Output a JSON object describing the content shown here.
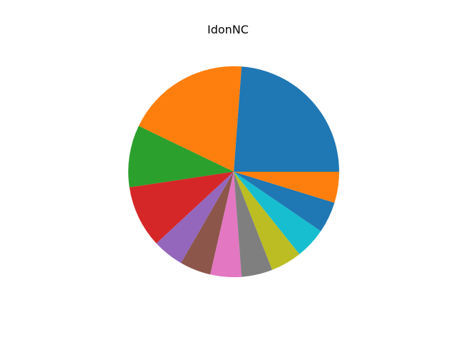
{
  "chart_data": {
    "type": "pie",
    "title": "IdonNC",
    "start_angle_deg": 0,
    "direction": "counterclockwise",
    "slices": [
      {
        "value": 25,
        "color": "#1f77b4"
      },
      {
        "value": 20,
        "color": "#ff7f0e"
      },
      {
        "value": 10,
        "color": "#2ca02c"
      },
      {
        "value": 10,
        "color": "#d62728"
      },
      {
        "value": 5,
        "color": "#9467bd"
      },
      {
        "value": 5,
        "color": "#8c564b"
      },
      {
        "value": 5,
        "color": "#e377c2"
      },
      {
        "value": 5,
        "color": "#7f7f7f"
      },
      {
        "value": 5,
        "color": "#bcbd22"
      },
      {
        "value": 5,
        "color": "#17becf"
      },
      {
        "value": 5,
        "color": "#1f77b4"
      },
      {
        "value": 5,
        "color": "#ff7f0e"
      }
    ]
  }
}
